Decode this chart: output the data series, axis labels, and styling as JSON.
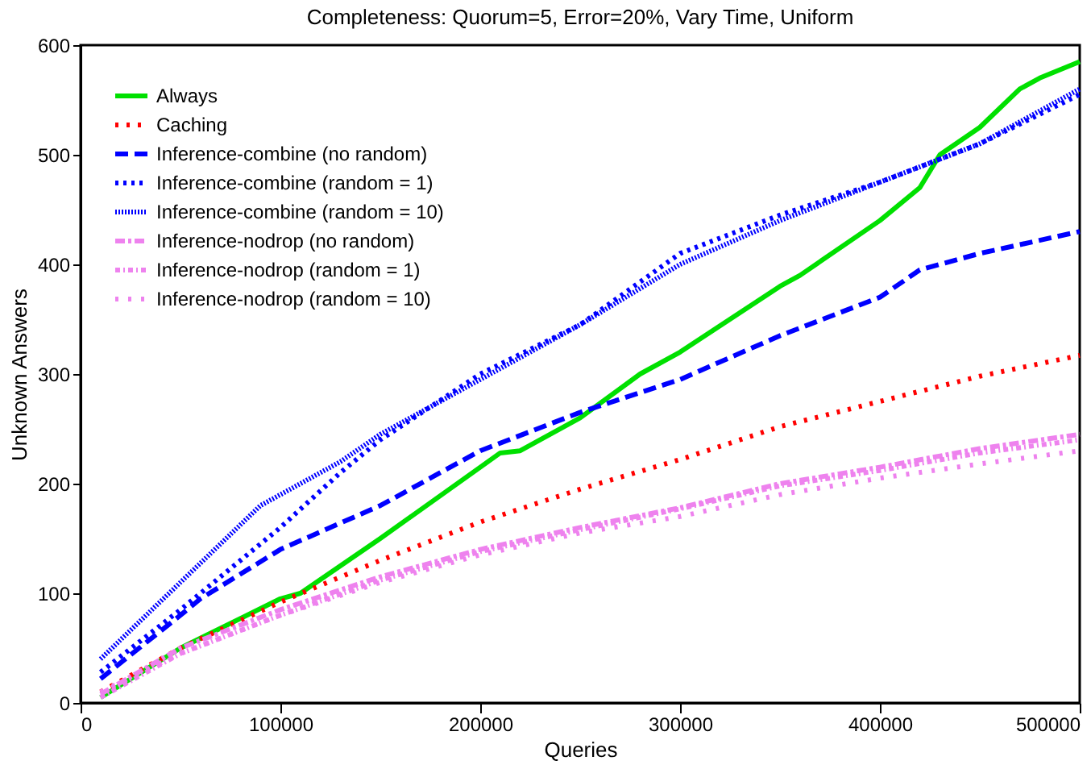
{
  "chart_data": {
    "type": "line",
    "title": "Completeness: Quorum=5, Error=20%, Vary Time, Uniform",
    "xlabel": "Queries",
    "ylabel": "Unknown Answers",
    "xlim": [
      0,
      500000
    ],
    "xticks": [
      0,
      100000,
      200000,
      300000,
      400000,
      500000
    ],
    "ylim": [
      0,
      600
    ],
    "yticks": [
      0,
      100,
      200,
      300,
      400,
      500,
      600
    ],
    "grid": false,
    "legend": "top left",
    "marker": "none",
    "series": [
      {
        "name": "Always",
        "color": "#00e000",
        "line_style": "solid",
        "x": [
          10000,
          50000,
          100000,
          110000,
          150000,
          200000,
          210000,
          220000,
          250000,
          280000,
          300000,
          350000,
          360000,
          400000,
          420000,
          430000,
          450000,
          470000,
          480000,
          500000
        ],
        "values": [
          5,
          50,
          95,
          100,
          150,
          215,
          228,
          230,
          260,
          300,
          320,
          380,
          390,
          440,
          470,
          500,
          525,
          560,
          570,
          585
        ]
      },
      {
        "name": "Caching",
        "color": "#ff0000",
        "line_style": "dotted",
        "x": [
          10000,
          50000,
          100000,
          150000,
          200000,
          250000,
          300000,
          350000,
          400000,
          450000,
          500000
        ],
        "values": [
          10,
          50,
          92,
          130,
          165,
          195,
          222,
          252,
          275,
          298,
          317
        ]
      },
      {
        "name": "Inference-combine (no random)",
        "color": "#0000ff",
        "line_style": "dashed",
        "x": [
          10000,
          50000,
          60000,
          100000,
          150000,
          200000,
          250000,
          300000,
          350000,
          400000,
          420000,
          450000,
          500000
        ],
        "values": [
          22,
          80,
          95,
          140,
          180,
          230,
          265,
          295,
          335,
          370,
          395,
          410,
          430
        ]
      },
      {
        "name": "Inference-combine (random = 1)",
        "color": "#0000ff",
        "line_style": "dotted",
        "x": [
          10000,
          50000,
          100000,
          130000,
          150000,
          200000,
          250000,
          300000,
          350000,
          400000,
          450000,
          500000
        ],
        "values": [
          28,
          85,
          160,
          210,
          240,
          300,
          345,
          410,
          445,
          475,
          510,
          555
        ]
      },
      {
        "name": "Inference-combine (random = 10)",
        "color": "#0000ff",
        "line_style": "dotted",
        "x": [
          10000,
          50000,
          90000,
          130000,
          150000,
          200000,
          250000,
          300000,
          350000,
          400000,
          450000,
          500000
        ],
        "values": [
          40,
          110,
          180,
          220,
          245,
          295,
          345,
          400,
          440,
          475,
          510,
          560
        ]
      },
      {
        "name": "Inference-nodrop (no random)",
        "color": "#ee82ee",
        "line_style": "dashed",
        "x": [
          10000,
          50000,
          100000,
          150000,
          200000,
          250000,
          300000,
          350000,
          400000,
          450000,
          500000
        ],
        "values": [
          8,
          50,
          85,
          115,
          140,
          160,
          178,
          200,
          215,
          232,
          245
        ]
      },
      {
        "name": "Inference-nodrop (random = 1)",
        "color": "#ee82ee",
        "line_style": "dashed",
        "x": [
          10000,
          50000,
          100000,
          150000,
          200000,
          250000,
          300000,
          350000,
          400000,
          450000,
          500000
        ],
        "values": [
          5,
          45,
          80,
          112,
          138,
          158,
          177,
          198,
          212,
          228,
          240
        ]
      },
      {
        "name": "Inference-nodrop (random = 10)",
        "color": "#ee82ee",
        "line_style": "dotted",
        "x": [
          10000,
          50000,
          100000,
          150000,
          200000,
          250000,
          300000,
          350000,
          400000,
          450000,
          500000
        ],
        "values": [
          10,
          45,
          80,
          110,
          135,
          155,
          170,
          190,
          205,
          218,
          230
        ]
      }
    ]
  }
}
